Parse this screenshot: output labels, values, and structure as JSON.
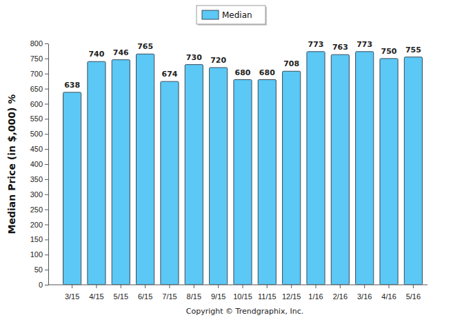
{
  "chart_data": {
    "type": "bar",
    "y_label": "Median Price (in $,000) %",
    "annotations": [
      "Copyright © Trendgraphix, Inc."
    ],
    "categories": [
      "3/15",
      "4/15",
      "5/15",
      "6/15",
      "7/15",
      "8/15",
      "9/15",
      "10/15",
      "11/15",
      "12/15",
      "1/16",
      "2/16",
      "3/16",
      "4/16",
      "5/16"
    ],
    "series": [
      {
        "name": "Median",
        "color": "#5bc8f5",
        "values": [
          638,
          740,
          746,
          765,
          674,
          730,
          720,
          680,
          680,
          708,
          773,
          763,
          773,
          750,
          755
        ]
      }
    ],
    "ylim": [
      0,
      800
    ],
    "yticks": [
      0,
      50,
      100,
      150,
      200,
      250,
      300,
      350,
      400,
      450,
      500,
      550,
      600,
      650,
      700,
      750,
      800
    ],
    "grid": false,
    "legend": "top",
    "data_labels": true
  }
}
